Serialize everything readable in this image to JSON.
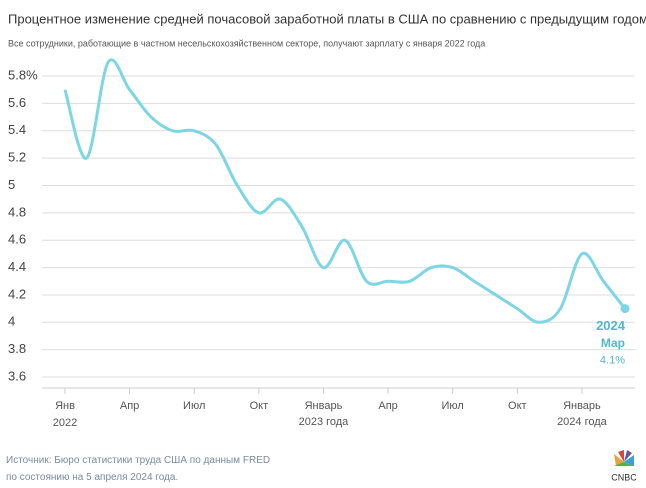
{
  "chart_data": {
    "type": "line",
    "title": "Процентное изменение средней почасовой заработной платы в США по сравнению с предыдущим годом",
    "subtitle": "Все сотрудники, работающие в частном несельскохозяйственном секторе, получают зарплату с января 2022 года",
    "categories": [
      "Янв",
      null,
      null,
      "Апр",
      null,
      null,
      "Июл",
      null,
      null,
      "Окт",
      null,
      null,
      "Январь",
      null,
      null,
      "Апр",
      null,
      null,
      "Июл",
      null,
      null,
      "Окт",
      null,
      null,
      "Январь",
      null,
      null
    ],
    "year_labels": [
      "2022",
      null,
      null,
      null,
      null,
      null,
      null,
      null,
      null,
      null,
      null,
      null,
      "2023 года",
      null,
      null,
      null,
      null,
      null,
      null,
      null,
      null,
      null,
      null,
      null,
      "2024 года",
      null,
      null
    ],
    "series": [
      {
        "name": "Средняя почасовая заработная плата",
        "color": "#7dd6e4",
        "values": [
          5.7,
          5.2,
          5.9,
          5.7,
          5.5,
          5.4,
          5.4,
          5.3,
          5.0,
          4.8,
          4.9,
          4.7,
          4.4,
          4.6,
          4.3,
          4.3,
          4.3,
          4.4,
          4.4,
          4.3,
          4.2,
          4.1,
          4.0,
          4.1,
          4.5,
          4.3,
          4.1
        ],
        "value_labels": [
          null,
          null,
          null,
          null,
          null,
          null,
          null,
          null,
          null,
          null,
          null,
          null,
          null,
          null,
          null,
          null,
          null,
          null,
          null,
          null,
          null,
          null,
          null,
          null,
          null,
          null,
          "4.1%"
        ]
      }
    ],
    "end_label": {
      "year": "2024",
      "month": "Мар"
    },
    "ylim": [
      3.5,
      6.0
    ],
    "yticks": [
      3.6,
      3.8,
      4,
      4.2,
      4.4,
      4.6,
      4.8,
      5,
      5.2,
      5.4,
      5.6,
      {
        "value": 5.8,
        "label": "5.8%"
      }
    ],
    "grid": true,
    "source": "Источник: Бюро статистики труда США по данным FRED по состоянию на 5 апреля 2024 года.",
    "brand": "CNBC"
  }
}
